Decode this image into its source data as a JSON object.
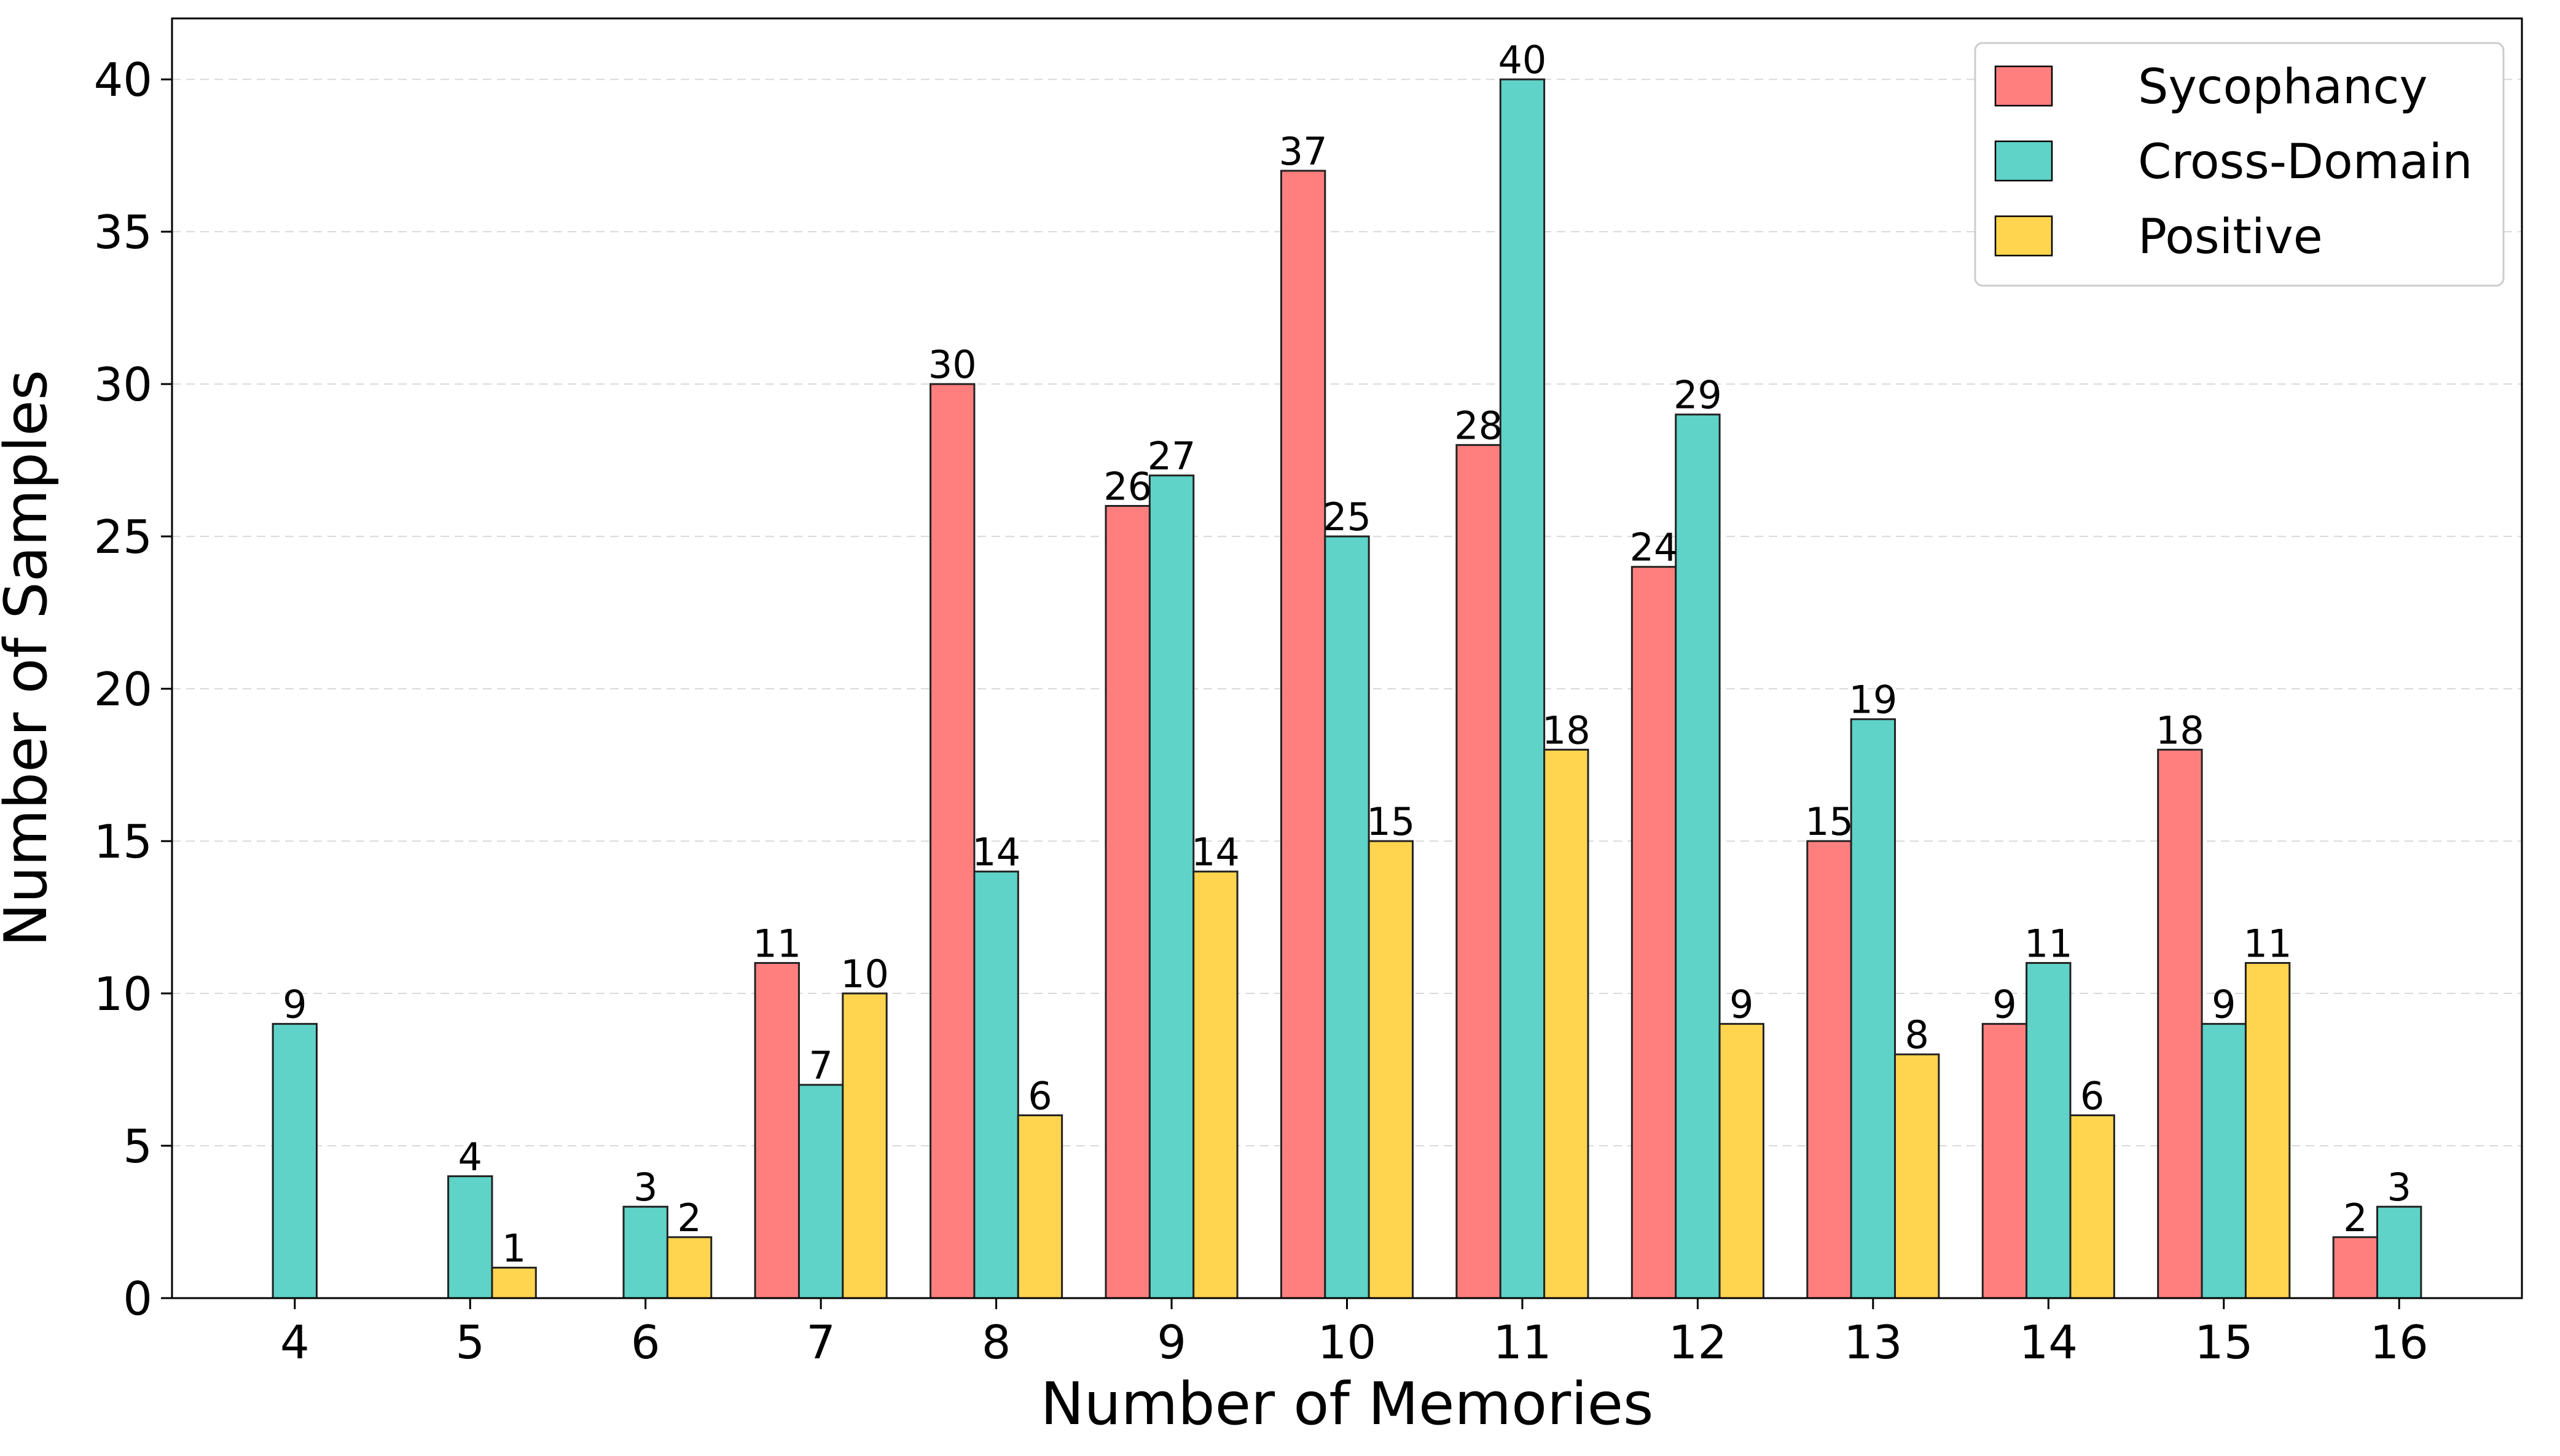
{
  "chart_data": {
    "type": "bar",
    "xlabel": "Number of Memories",
    "ylabel": "Number of Samples",
    "categories": [
      "4",
      "5",
      "6",
      "7",
      "8",
      "9",
      "10",
      "11",
      "12",
      "13",
      "14",
      "15",
      "16"
    ],
    "series": [
      {
        "name": "Sycophancy",
        "color": "#ff7f7f",
        "values": [
          0,
          0,
          0,
          11,
          30,
          26,
          37,
          28,
          24,
          15,
          9,
          18,
          2
        ]
      },
      {
        "name": "Cross-Domain",
        "color": "#5fd3c8",
        "values": [
          9,
          4,
          3,
          7,
          14,
          27,
          25,
          40,
          29,
          19,
          11,
          9,
          3
        ]
      },
      {
        "name": "Positive",
        "color": "#ffd54f",
        "values": [
          0,
          1,
          2,
          10,
          6,
          14,
          15,
          18,
          9,
          8,
          6,
          11,
          0
        ]
      }
    ],
    "ylim": [
      0,
      42
    ],
    "yticks": [
      0,
      5,
      10,
      15,
      20,
      25,
      30,
      35,
      40
    ],
    "grid": "y-dashed",
    "legend": "top-right"
  }
}
